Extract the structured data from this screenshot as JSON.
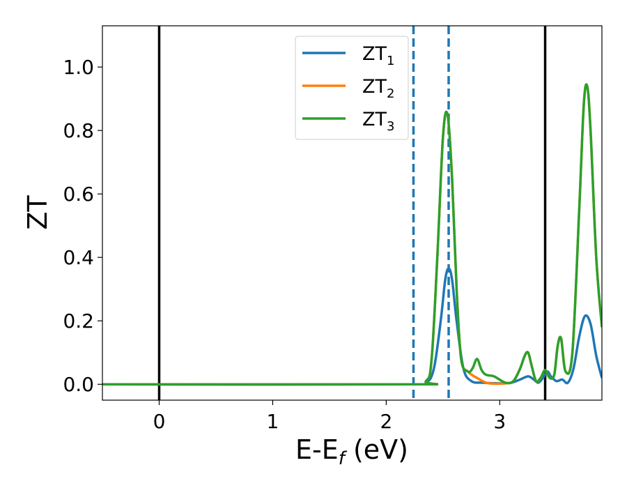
{
  "chart_data": {
    "type": "line",
    "xlabel": "E-E",
    "xlabel_sub": "f",
    "xlabel_unit": " (eV)",
    "ylabel": "ZT",
    "xlim": [
      -0.5,
      3.9
    ],
    "ylim": [
      -0.05,
      1.13
    ],
    "x_ticks": [
      0,
      1,
      2,
      3
    ],
    "x_tick_labels": [
      "0",
      "1",
      "2",
      "3"
    ],
    "y_ticks": [
      0.0,
      0.2,
      0.4,
      0.6,
      0.8,
      1.0
    ],
    "y_tick_labels": [
      "0.0",
      "0.2",
      "0.4",
      "0.6",
      "0.8",
      "1.0"
    ],
    "grid": false,
    "legend_position": "top-center",
    "vlines_solid": [
      0.0,
      3.4
    ],
    "vlines_dashed": [
      2.24,
      2.55
    ],
    "series": [
      {
        "name": "ZT",
        "name_sub": "1",
        "color": "#1f77b4",
        "x": [
          -0.5,
          2.2,
          2.35,
          2.42,
          2.48,
          2.52,
          2.55,
          2.58,
          2.62,
          2.68,
          2.75,
          2.85,
          3.0,
          3.1,
          3.18,
          3.25,
          3.3,
          3.34,
          3.38,
          3.42,
          3.45,
          3.5,
          3.55,
          3.6,
          3.65,
          3.7,
          3.75,
          3.8,
          3.85,
          3.9
        ],
        "y": [
          0.0,
          0.0,
          0.005,
          0.05,
          0.2,
          0.33,
          0.365,
          0.33,
          0.2,
          0.05,
          0.01,
          0.005,
          0.003,
          0.005,
          0.015,
          0.025,
          0.015,
          0.005,
          0.02,
          0.04,
          0.025,
          0.01,
          0.015,
          0.005,
          0.05,
          0.15,
          0.215,
          0.19,
          0.09,
          0.02
        ]
      },
      {
        "name": "ZT",
        "name_sub": "2",
        "color": "#ff7f0e",
        "x": [
          -0.5,
          2.2,
          2.35,
          2.4,
          2.45,
          2.5,
          2.54,
          2.58,
          2.62,
          2.66,
          2.72,
          2.8,
          2.88,
          2.95,
          3.05,
          3.12,
          3.18,
          3.22,
          3.25,
          3.28,
          3.32,
          3.36,
          3.4,
          3.44,
          3.48,
          3.51,
          3.54,
          3.58,
          3.64,
          3.7,
          3.74,
          3.77,
          3.8,
          3.85,
          3.9
        ],
        "y": [
          0.0,
          0.0,
          0.01,
          0.08,
          0.4,
          0.78,
          0.85,
          0.65,
          0.3,
          0.08,
          0.04,
          0.02,
          0.005,
          0.002,
          0.003,
          0.01,
          0.05,
          0.09,
          0.1,
          0.06,
          0.01,
          0.02,
          0.045,
          0.02,
          0.03,
          0.12,
          0.145,
          0.04,
          0.1,
          0.55,
          0.88,
          0.94,
          0.8,
          0.4,
          0.18
        ]
      },
      {
        "name": "ZT",
        "name_sub": "3",
        "color": "#2ca02c",
        "x": [
          -0.5,
          2.2,
          2.35,
          2.4,
          2.45,
          2.5,
          2.54,
          2.58,
          2.62,
          2.66,
          2.72,
          2.76,
          2.8,
          2.84,
          2.88,
          2.95,
          3.05,
          3.12,
          3.18,
          3.22,
          3.25,
          3.28,
          3.32,
          3.36,
          3.4,
          3.44,
          3.48,
          3.51,
          3.54,
          3.58,
          3.64,
          3.7,
          3.74,
          3.77,
          3.8,
          3.85,
          3.9
        ],
        "y": [
          0.0,
          0.0,
          0.01,
          0.08,
          0.4,
          0.78,
          0.85,
          0.65,
          0.3,
          0.08,
          0.04,
          0.05,
          0.08,
          0.045,
          0.03,
          0.025,
          0.005,
          0.01,
          0.05,
          0.09,
          0.1,
          0.06,
          0.01,
          0.02,
          0.045,
          0.02,
          0.03,
          0.12,
          0.145,
          0.04,
          0.1,
          0.55,
          0.88,
          0.94,
          0.8,
          0.4,
          0.18
        ]
      }
    ]
  }
}
